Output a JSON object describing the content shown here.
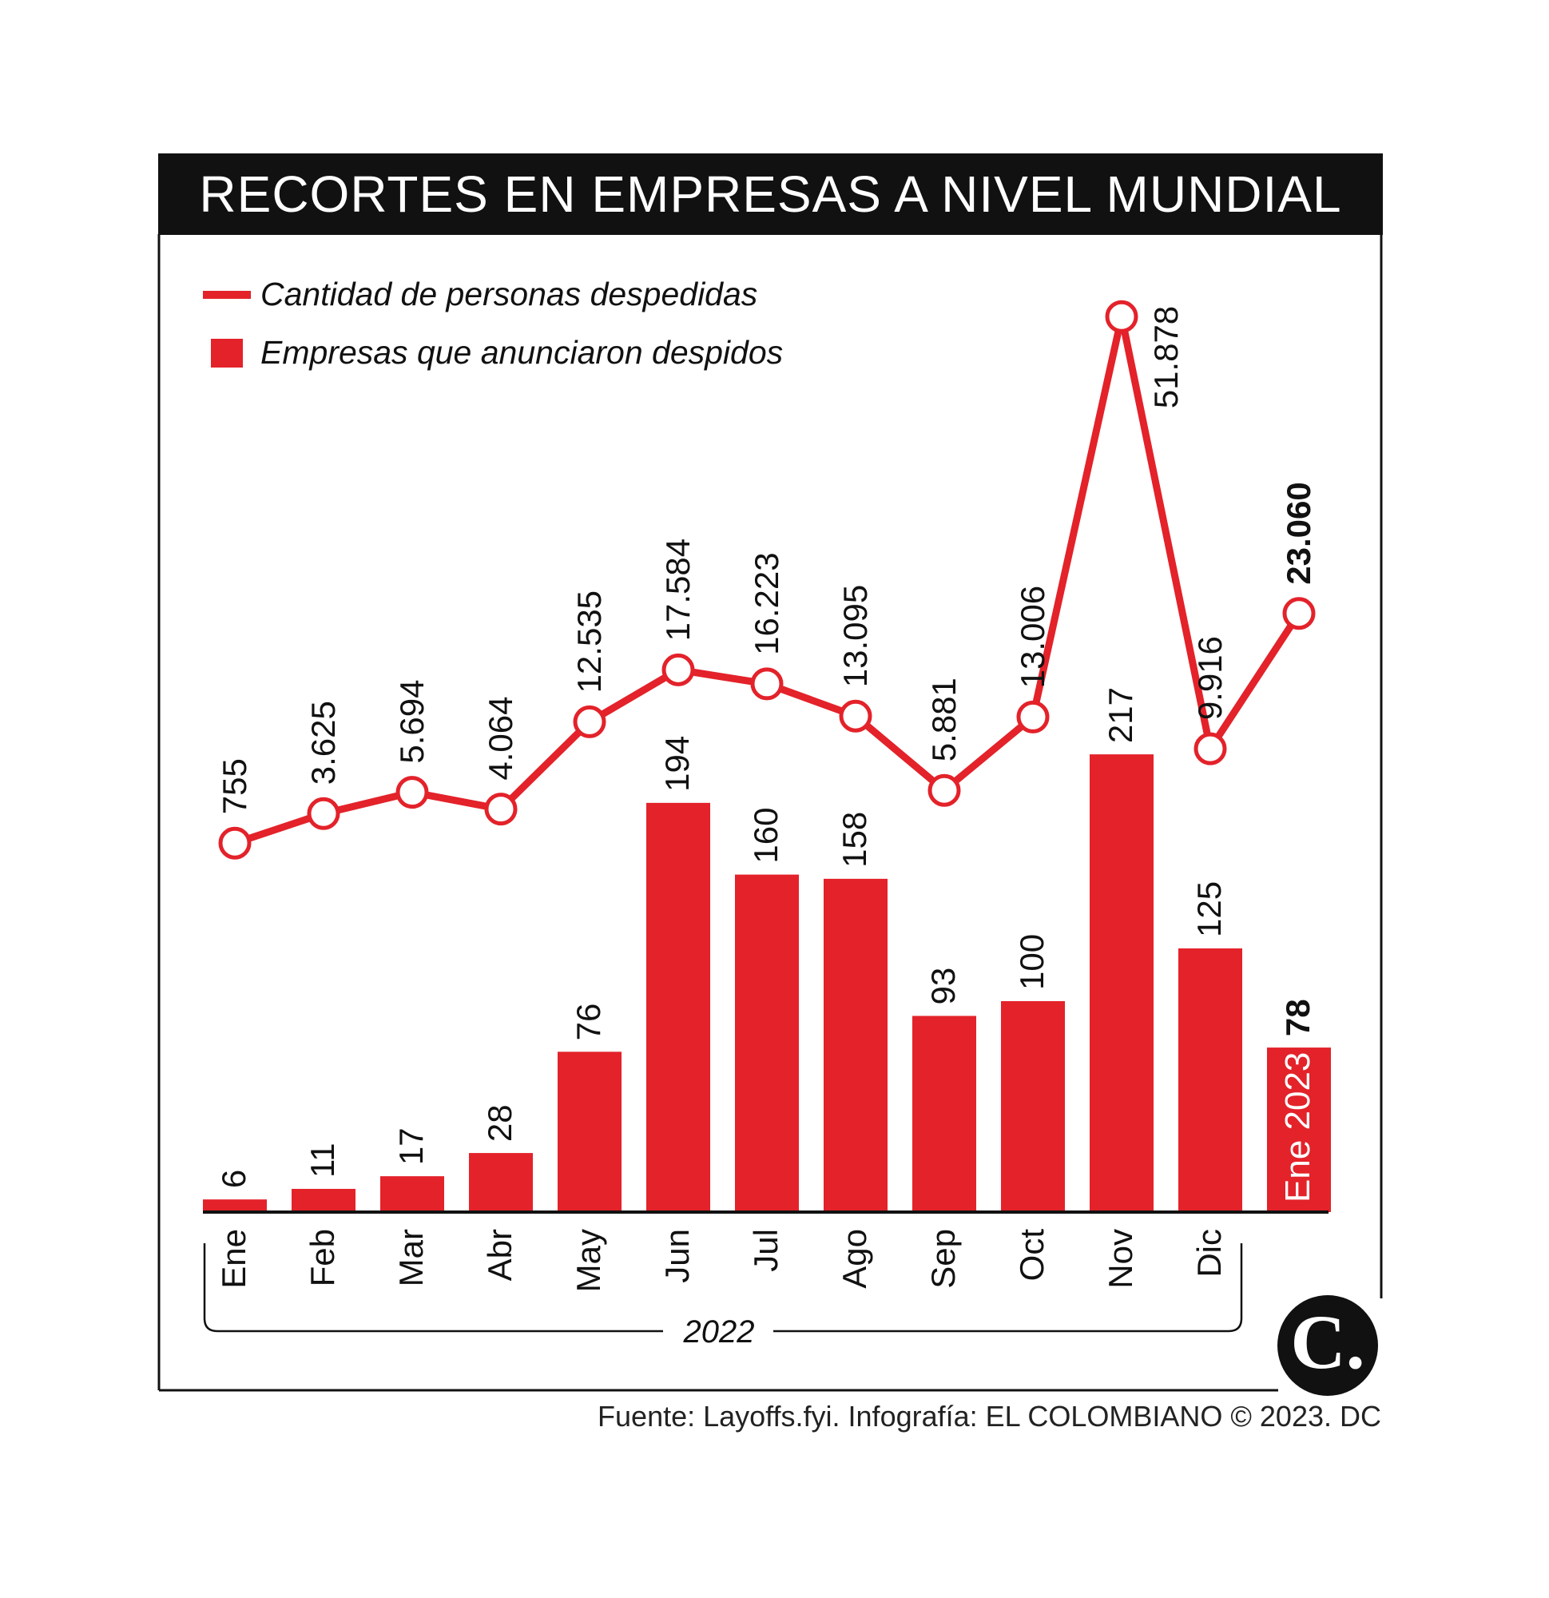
{
  "title": "RECORTES EN EMPRESAS A NIVEL MUNDIAL",
  "source": "Fuente: Layoffs.fyi. Infografía: EL COLOMBIANO © 2023. DC",
  "logo_letter": "C.",
  "year_bracket_label": "2022",
  "colors": {
    "accent": "#e3222a",
    "dark": "#111111",
    "background": "#ffffff"
  },
  "legend": {
    "line_label": "Cantidad de personas despedidas",
    "bar_label": "Empresas que anunciaron despidos"
  },
  "chart_data": {
    "type": "bar",
    "categories": [
      "Ene",
      "Feb",
      "Mar",
      "Abr",
      "May",
      "Jun",
      "Jul",
      "Ago",
      "Sep",
      "Oct",
      "Nov",
      "Dic",
      "Ene 2023"
    ],
    "series": [
      {
        "name": "Cantidad de personas despedidas",
        "type": "line",
        "values": [
          755,
          3625,
          5694,
          4064,
          12535,
          17584,
          16223,
          13095,
          5881,
          13006,
          51878,
          9916,
          23060
        ],
        "labels": [
          "755",
          "3.625",
          "5.694",
          "4.064",
          "12.535",
          "17.584",
          "16.223",
          "13.095",
          "5.881",
          "13.006",
          "51.878",
          "9.916",
          "23.060"
        ]
      },
      {
        "name": "Empresas que anunciaron despidos",
        "type": "bar",
        "values": [
          6,
          11,
          17,
          28,
          76,
          194,
          160,
          158,
          93,
          100,
          217,
          125,
          78
        ],
        "labels": [
          "6",
          "11",
          "17",
          "28",
          "76",
          "194",
          "160",
          "158",
          "93",
          "100",
          "217",
          "125",
          "78"
        ]
      }
    ],
    "highlight_last": true,
    "grid": false,
    "legend_position": "top-left"
  }
}
